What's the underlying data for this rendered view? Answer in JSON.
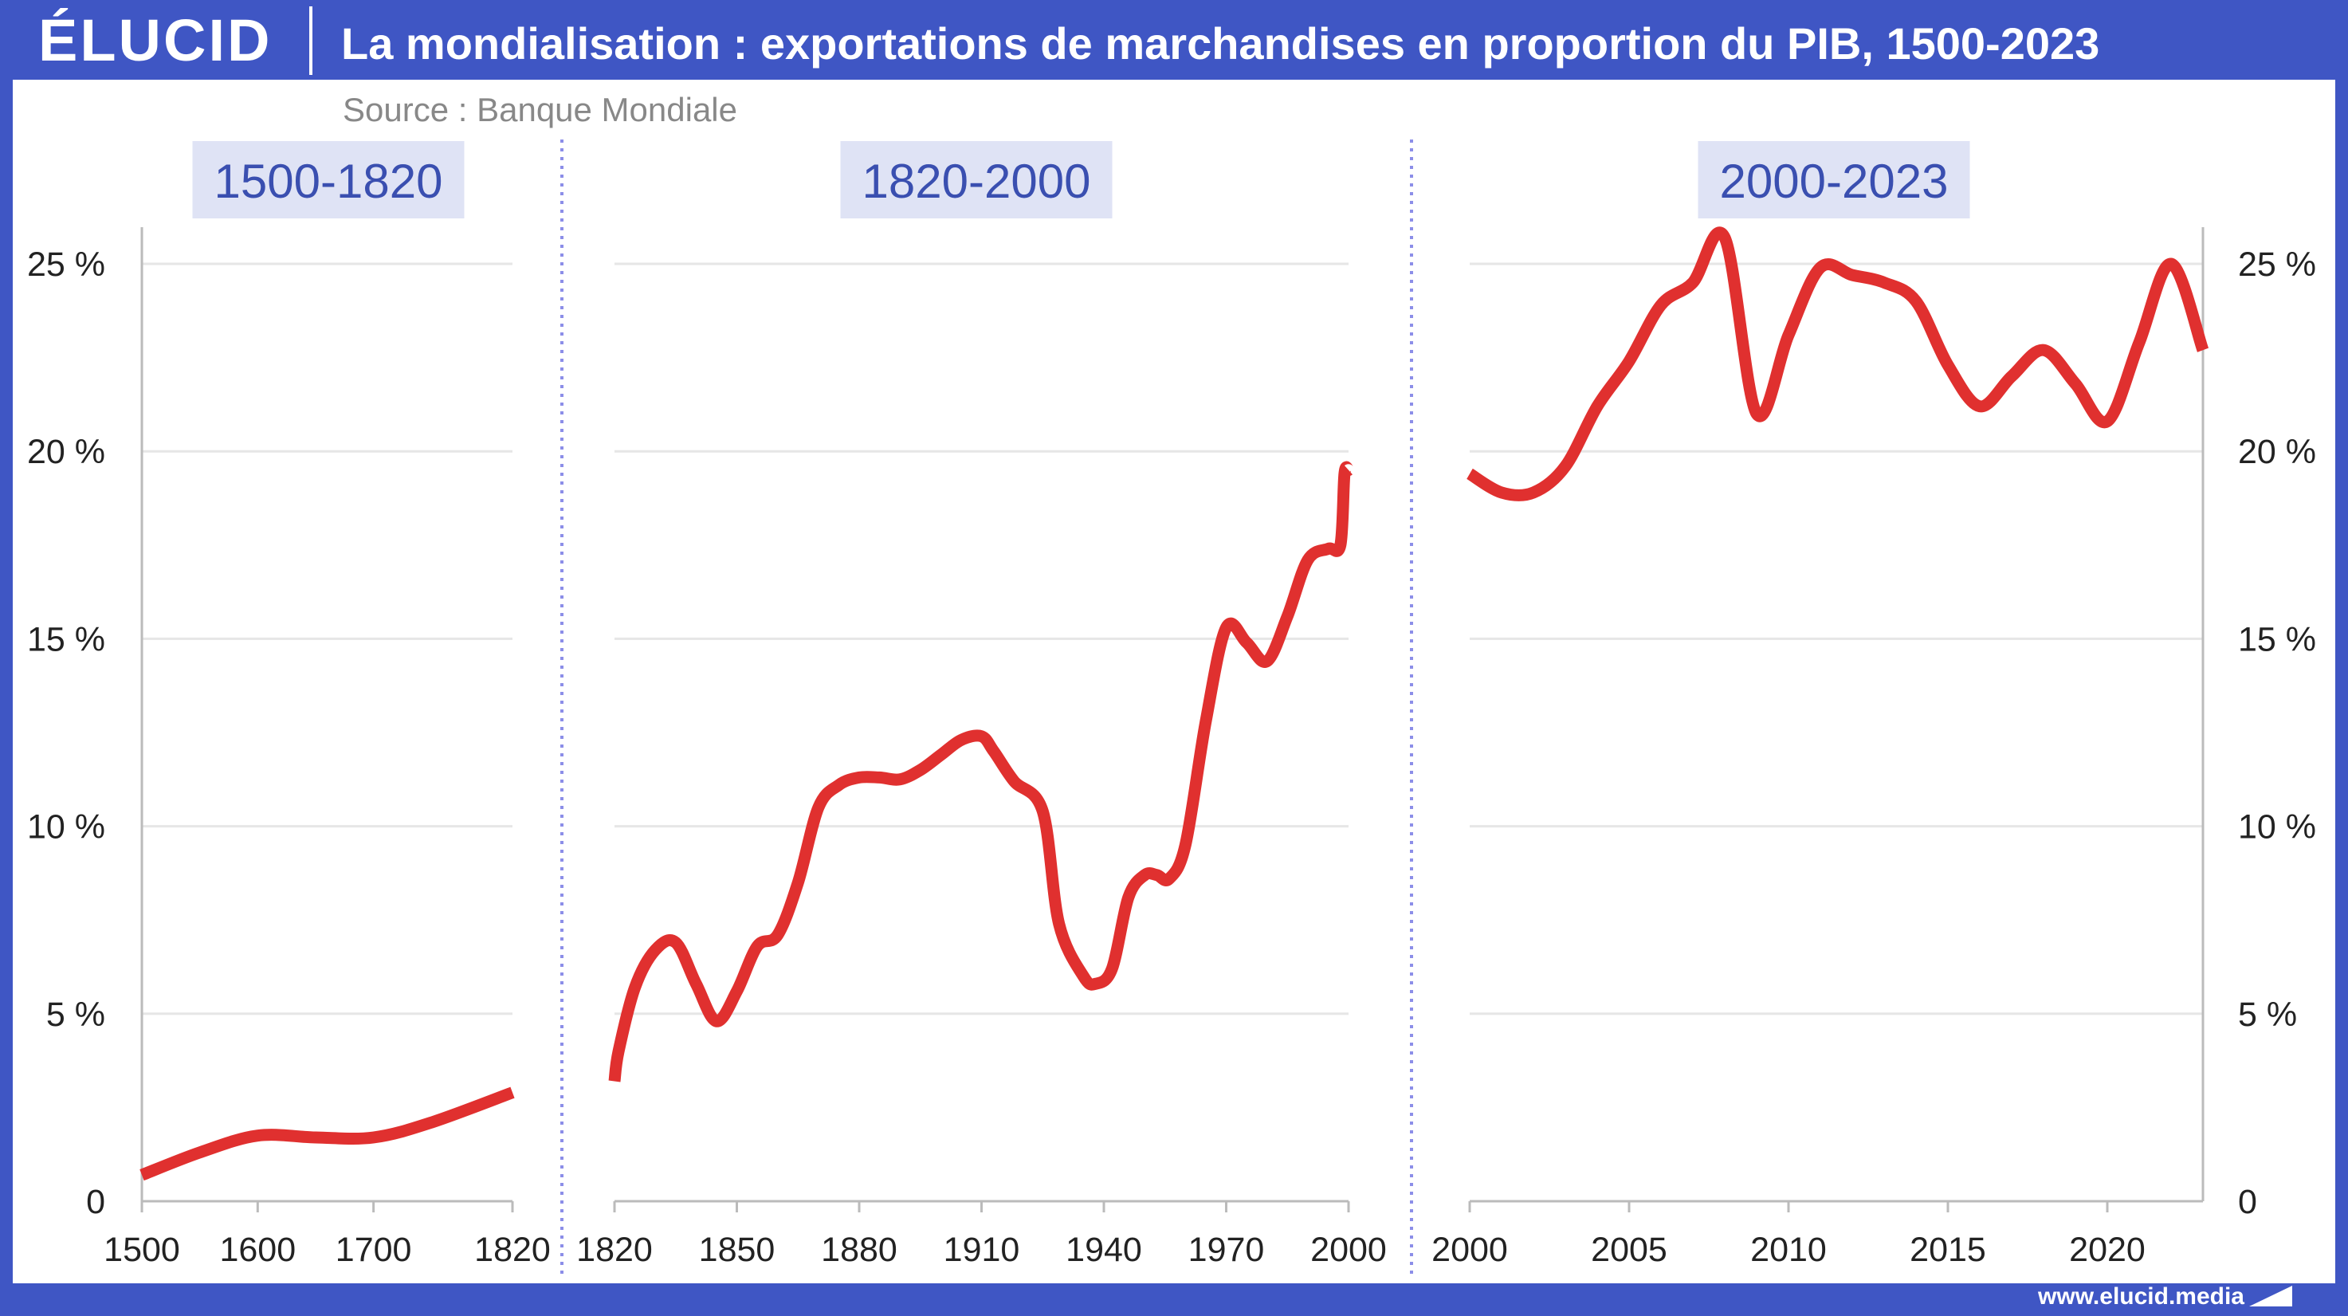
{
  "header": {
    "logo": "ÉLUCID",
    "title": "La mondialisation : exportations de marchandises en proportion du PIB, 1500-2023"
  },
  "footer": {
    "url": "www.elucid.media"
  },
  "colors": {
    "brand": "#3f56c4",
    "line": "#e0302f",
    "label_bg": "#dfe3f5",
    "label_text": "#3a4fb0",
    "separator": "#8c8ee8",
    "grid": "#e6e6e6"
  },
  "chart_data": {
    "type": "line",
    "title": "La mondialisation : exportations de marchandises en proportion du PIB, 1500-2023",
    "subtitle": "Source : Banque Mondiale",
    "y_axis": {
      "ylim": [
        0,
        26
      ],
      "ticks": [
        0,
        5,
        10,
        15,
        20,
        25
      ],
      "tick_labels": [
        "0",
        "5 %",
        "10 %",
        "15 %",
        "20 %",
        "25 %"
      ],
      "grid": true
    },
    "panels": [
      {
        "label": "1500-1820",
        "xlim": [
          1500,
          1820
        ],
        "xticks": [
          1500,
          1600,
          1700,
          1820
        ],
        "x": [
          1500,
          1550,
          1600,
          1650,
          1700,
          1750,
          1820
        ],
        "y": [
          0.7,
          1.3,
          1.75,
          1.7,
          1.7,
          2.1,
          2.9
        ]
      },
      {
        "label": "1820-2000",
        "xlim": [
          1820,
          2000
        ],
        "xticks": [
          1820,
          1850,
          1880,
          1910,
          1940,
          1970,
          2000
        ],
        "x": [
          1820,
          1821,
          1825,
          1830,
          1835,
          1840,
          1845,
          1850,
          1855,
          1860,
          1865,
          1870,
          1875,
          1880,
          1885,
          1890,
          1895,
          1900,
          1905,
          1910,
          1913,
          1918,
          1925,
          1929,
          1935,
          1938,
          1942,
          1946,
          1950,
          1953,
          1956,
          1960,
          1965,
          1970,
          1975,
          1980,
          1985,
          1990,
          1995,
          1998,
          1999,
          2000
        ],
        "y": [
          3.2,
          4.0,
          5.7,
          6.7,
          6.9,
          5.8,
          4.8,
          5.6,
          6.8,
          7.1,
          8.5,
          10.5,
          11.1,
          11.3,
          11.3,
          11.25,
          11.5,
          11.9,
          12.3,
          12.4,
          12.0,
          11.2,
          10.4,
          7.4,
          6.0,
          5.8,
          6.2,
          8.1,
          8.7,
          8.7,
          8.6,
          9.5,
          12.8,
          15.3,
          14.9,
          14.4,
          15.6,
          17.1,
          17.4,
          17.5,
          19.4,
          19.5
        ]
      },
      {
        "label": "2000-2023",
        "xlim": [
          2000,
          2023
        ],
        "xticks": [
          2000,
          2005,
          2010,
          2015,
          2020
        ],
        "x": [
          2000,
          2001,
          2002,
          2003,
          2004,
          2005,
          2006,
          2007,
          2008,
          2009,
          2010,
          2011,
          2012,
          2013,
          2014,
          2015,
          2016,
          2017,
          2018,
          2019,
          2020,
          2021,
          2022,
          2023
        ],
        "y": [
          19.4,
          18.9,
          18.9,
          19.6,
          21.2,
          22.4,
          23.9,
          24.5,
          25.7,
          21.0,
          23.1,
          24.9,
          24.7,
          24.5,
          24.0,
          22.3,
          21.2,
          22.0,
          22.7,
          21.8,
          20.8,
          22.9,
          25.0,
          22.7
        ]
      }
    ]
  }
}
